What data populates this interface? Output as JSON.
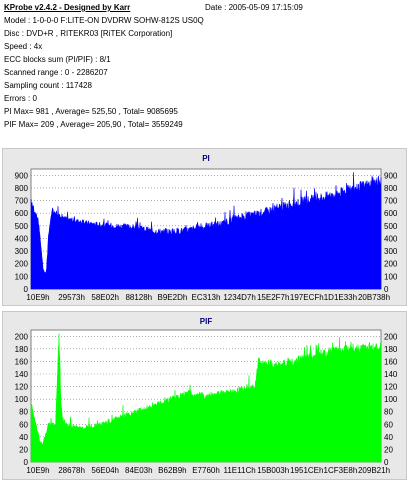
{
  "header": {
    "title": "KProbe v2.4.2 - Designed by Karr",
    "date": "Date : 2005-05-09 17:15:09",
    "lines": [
      "Model : 1-0-0-0 F:LITE-ON DVDRW SOHW-812S  US0Q",
      "Disc : DVD+R , RITEKR03 [RiTEK Corporation]",
      "Speed : 4x",
      "ECC blocks sum (PI/PIF) : 8/1",
      "Scanned range : 0 - 2286207",
      "Sampling count : 117428",
      "Errors : 0",
      "PI Max= 981 , Average= 525,50 , Total= 9085695",
      "PIF Max= 209 , Average= 205,90 , Total= 3559249"
    ]
  },
  "chart_data": [
    {
      "type": "area",
      "title": "PI",
      "color": "#0000ff",
      "ylim": [
        0,
        950
      ],
      "yticks": [
        0,
        100,
        200,
        300,
        400,
        500,
        600,
        700,
        800,
        900
      ],
      "grid": true,
      "xticks": [
        "10E9h",
        "29573h",
        "58E02h",
        "88128h",
        "B9E2Dh",
        "EC313h",
        "1234D7h",
        "15E2F7h",
        "197ECFh",
        "1D1E33h",
        "20B738h"
      ],
      "x": [
        0,
        0.01,
        0.02,
        0.03,
        0.035,
        0.04,
        0.045,
        0.05,
        0.06,
        0.08,
        0.1,
        0.15,
        0.2,
        0.25,
        0.3,
        0.35,
        0.4,
        0.45,
        0.5,
        0.55,
        0.6,
        0.65,
        0.7,
        0.75,
        0.8,
        0.85,
        0.9,
        0.95,
        1.0
      ],
      "values": [
        700,
        610,
        560,
        300,
        150,
        110,
        160,
        420,
        630,
        590,
        560,
        530,
        510,
        500,
        490,
        460,
        455,
        470,
        500,
        520,
        570,
        600,
        640,
        680,
        710,
        740,
        780,
        820,
        860
      ]
    },
    {
      "type": "area",
      "title": "PIF",
      "color": "#00ff00",
      "ylim": [
        0,
        210
      ],
      "yticks": [
        0,
        20,
        40,
        60,
        80,
        100,
        120,
        140,
        160,
        180,
        200
      ],
      "grid": true,
      "xticks": [
        "10E9h",
        "28678h",
        "56E04h",
        "84E03h",
        "B62B9h",
        "E7760h",
        "11E11Ch",
        "15B003h",
        "1951CEh",
        "1CF3E8h",
        "209B21h"
      ],
      "x": [
        0,
        0.01,
        0.02,
        0.03,
        0.04,
        0.05,
        0.07,
        0.08,
        0.085,
        0.09,
        0.1,
        0.13,
        0.16,
        0.2,
        0.25,
        0.3,
        0.35,
        0.4,
        0.45,
        0.5,
        0.55,
        0.6,
        0.64,
        0.65,
        0.7,
        0.75,
        0.8,
        0.85,
        0.9,
        0.95,
        1.0
      ],
      "values": [
        95,
        70,
        45,
        25,
        40,
        60,
        60,
        205,
        100,
        70,
        60,
        55,
        55,
        60,
        70,
        80,
        90,
        100,
        110,
        105,
        110,
        115,
        120,
        160,
        155,
        160,
        170,
        175,
        180,
        182,
        185
      ]
    }
  ]
}
